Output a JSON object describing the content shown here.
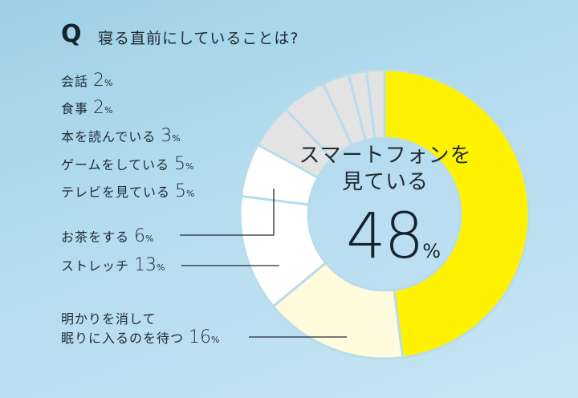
{
  "header": {
    "q_mark": "Q",
    "title": "寝る直前にしていることは?"
  },
  "labels": [
    {
      "text": "会話",
      "value": "2",
      "unit": "%"
    },
    {
      "text": "食事",
      "value": "2",
      "unit": "%"
    },
    {
      "text": "本を読んでいる",
      "value": "3",
      "unit": "%"
    },
    {
      "text": "ゲームをしている",
      "value": "5",
      "unit": "%"
    },
    {
      "text": "テレビを見ている",
      "value": "5",
      "unit": "%"
    },
    {
      "text": "お茶をする",
      "value": "6",
      "unit": "%"
    },
    {
      "text": "ストレッチ",
      "value": "13",
      "unit": "%"
    },
    {
      "text_line1": "明かりを消して",
      "text": "眠りに入るのを待つ",
      "value": "16",
      "unit": "%"
    }
  ],
  "center": {
    "label_line1": "スマートフォンを",
    "label_line2": "見ている",
    "value": "48",
    "unit": "%"
  },
  "colors": {
    "background": "#b3dbee",
    "smartphone": "#fff200",
    "lights_off": "#fffbdc",
    "white_segments": "#ffffff",
    "gray_segments": "#e3e3e3",
    "separator": "#b8dcec",
    "text": "#1f2a33"
  },
  "chart_data": {
    "type": "pie",
    "variant": "donut",
    "title": "寝る直前にしていることは?",
    "categories": [
      "スマートフォンを見ている",
      "明かりを消して眠りに入るのを待つ",
      "ストレッチ",
      "お茶をする",
      "テレビを見ている",
      "ゲームをしている",
      "本を読んでいる",
      "食事",
      "会話"
    ],
    "values": [
      48,
      16,
      13,
      6,
      5,
      5,
      3,
      2,
      2
    ],
    "unit": "%",
    "start_angle": "12 o'clock, clockwise",
    "highlight": {
      "category": "スマートフォンを見ている",
      "value": 48
    }
  }
}
